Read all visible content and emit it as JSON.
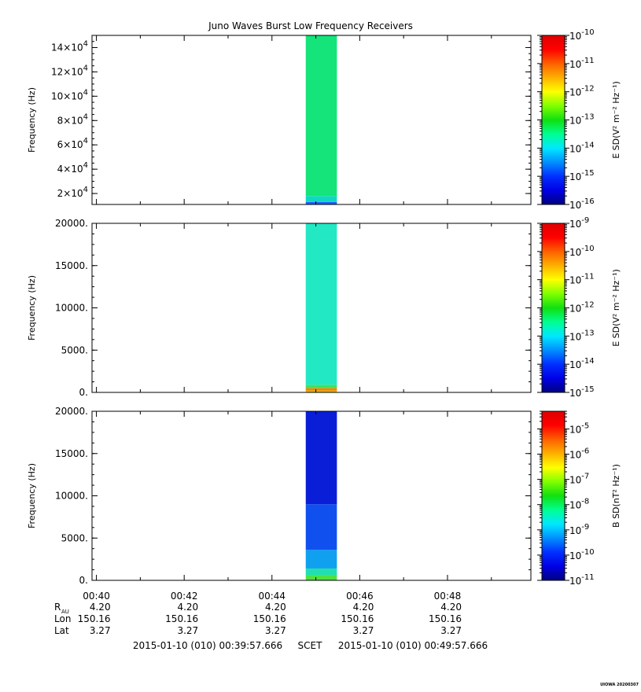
{
  "title": "Juno Waves Burst Low Frequency Receivers",
  "credit": "UIOWA 20200307",
  "colors": {
    "axis": "#000000",
    "background": "#ffffff"
  },
  "chart_data": [
    {
      "type": "heatmap",
      "name": "panel-1",
      "ylabel": "Frequency (Hz)",
      "colorbar_label": "E SD(V² m⁻² Hz⁻¹)",
      "ylim": [
        11000,
        150000
      ],
      "yticks": [
        {
          "v": 20000,
          "m": "2",
          "e": "4"
        },
        {
          "v": 40000,
          "m": "4",
          "e": "4"
        },
        {
          "v": 60000,
          "m": "6",
          "e": "4"
        },
        {
          "v": 80000,
          "m": "8",
          "e": "4"
        },
        {
          "v": 100000,
          "m": "10",
          "e": "4"
        },
        {
          "v": 120000,
          "m": "12",
          "e": "4"
        },
        {
          "v": 140000,
          "m": "14",
          "e": "4"
        }
      ],
      "colorbar_log_range": [
        -16,
        -10
      ],
      "colorbar_ticks": [
        "-16",
        "-15",
        "-14",
        "-13",
        "-12",
        "-11",
        "-10"
      ],
      "burst": {
        "x_start": 44.77,
        "x_end": 45.48,
        "bands": [
          {
            "frac": [
              0,
              0.015
            ],
            "color": "#2060ff"
          },
          {
            "frac": [
              0.015,
              0.05
            ],
            "color": "#10d8c0"
          },
          {
            "frac": [
              0.05,
              1
            ],
            "color": "#14e47a"
          }
        ]
      }
    },
    {
      "type": "heatmap",
      "name": "panel-2",
      "ylabel": "Frequency (Hz)",
      "colorbar_label": "E SD(V² m⁻² Hz⁻¹)",
      "ylim": [
        0,
        20000
      ],
      "yticks": [
        {
          "v": 0,
          "t": "0."
        },
        {
          "v": 5000,
          "t": "5000."
        },
        {
          "v": 10000,
          "t": "10000."
        },
        {
          "v": 15000,
          "t": "15000."
        },
        {
          "v": 20000,
          "t": "20000."
        }
      ],
      "colorbar_log_range": [
        -15,
        -9
      ],
      "colorbar_ticks": [
        "-15",
        "-14",
        "-13",
        "-12",
        "-11",
        "-10",
        "-9"
      ],
      "burst": {
        "x_start": 44.77,
        "x_end": 45.48,
        "bands": [
          {
            "frac": [
              0,
              0.01
            ],
            "color": "#c0d000"
          },
          {
            "frac": [
              0.01,
              0.025
            ],
            "color": "#ff8000"
          },
          {
            "frac": [
              0.025,
              0.045
            ],
            "color": "#40e060"
          },
          {
            "frac": [
              0.045,
              1
            ],
            "color": "#22e8c4"
          }
        ]
      }
    },
    {
      "type": "heatmap",
      "name": "panel-3",
      "ylabel": "Frequency (Hz)",
      "colorbar_label": "B SD(nT² Hz⁻¹)",
      "ylim": [
        0,
        20000
      ],
      "yticks": [
        {
          "v": 0,
          "t": "0."
        },
        {
          "v": 5000,
          "t": "5000."
        },
        {
          "v": 10000,
          "t": "10000."
        },
        {
          "v": 15000,
          "t": "15000."
        },
        {
          "v": 20000,
          "t": "20000."
        }
      ],
      "colorbar_log_range": [
        -11,
        -4.3
      ],
      "colorbar_ticks": [
        "-11",
        "-10",
        "-9",
        "-8",
        "-7",
        "-6",
        "-5"
      ],
      "burst": {
        "x_start": 44.77,
        "x_end": 45.48,
        "bands": [
          {
            "frac": [
              0,
              0.03
            ],
            "color": "#50e040"
          },
          {
            "frac": [
              0.03,
              0.07
            ],
            "color": "#20e0b0"
          },
          {
            "frac": [
              0.07,
              0.18
            ],
            "color": "#10a0f0"
          },
          {
            "frac": [
              0.18,
              0.45
            ],
            "color": "#1050ee"
          },
          {
            "frac": [
              0.45,
              1
            ],
            "color": "#0a1ed8"
          }
        ]
      }
    }
  ],
  "time_axis": {
    "range_minutes": [
      39.9,
      49.9
    ],
    "major_ticks": [
      40,
      42,
      44,
      46,
      48
    ],
    "minor_ticks": [
      41,
      43,
      45,
      47,
      49
    ],
    "tick_labels": [
      "00:40",
      "00:42",
      "00:44",
      "00:46",
      "00:48"
    ]
  },
  "ephemeris": {
    "rows": [
      {
        "label": "R",
        "sub": "AU",
        "values": [
          "4.20",
          "4.20",
          "4.20",
          "4.20",
          "4.20"
        ]
      },
      {
        "label": "Lon",
        "values": [
          "150.16",
          "150.16",
          "150.16",
          "150.16",
          "150.16"
        ]
      },
      {
        "label": "Lat",
        "values": [
          "3.27",
          "3.27",
          "3.27",
          "3.27",
          "3.27"
        ]
      }
    ]
  },
  "footer": {
    "start": "2015-01-10 (010) 00:39:57.666",
    "middle": "SCET",
    "end": "2015-01-10 (010) 00:49:57.666"
  }
}
